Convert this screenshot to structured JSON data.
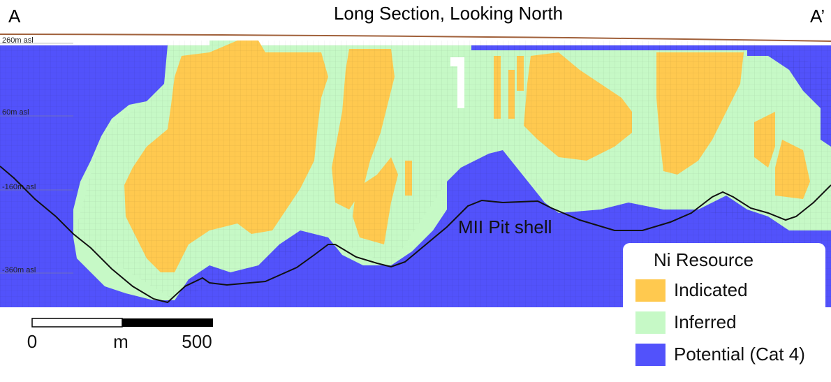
{
  "title": "Long Section, Looking North",
  "section_ends": {
    "left": "A",
    "right": "A’"
  },
  "elevation_labels": [
    "260m asl",
    "60m asl",
    "-160m asl",
    "-360m asl"
  ],
  "pit_shell_label": "MII Pit shell",
  "legend": {
    "title": "Ni Resource",
    "items": [
      "Indicated",
      "Inferred",
      "Potential (Cat 4)"
    ]
  },
  "scale_bar": {
    "labels": [
      "0",
      "m",
      "500"
    ]
  }
}
